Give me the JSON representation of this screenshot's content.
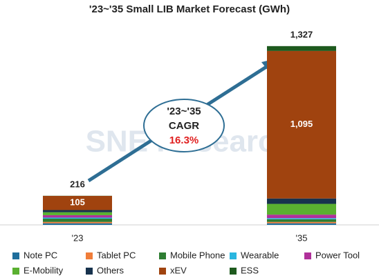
{
  "chart_data": {
    "type": "stacked-bar",
    "title": "'23~'35 Small LIB Market Forecast (GWh)",
    "categories": [
      "'23",
      "'35"
    ],
    "series": [
      {
        "name": "Note PC",
        "color": "#1f6e9c",
        "values": [
          12,
          12
        ]
      },
      {
        "name": "Tablet PC",
        "color": "#f07d3a",
        "values": [
          10,
          10
        ]
      },
      {
        "name": "Mobile Phone",
        "color": "#2e7d32",
        "values": [
          24,
          20
        ]
      },
      {
        "name": "Wearable",
        "color": "#29b6e0",
        "values": [
          8,
          8
        ]
      },
      {
        "name": "Power Tool",
        "color": "#b0309a",
        "values": [
          18,
          26
        ]
      },
      {
        "name": "E-Mobility",
        "color": "#5ab030",
        "values": [
          22,
          80
        ]
      },
      {
        "name": "Others",
        "color": "#17324d",
        "values": [
          16,
          40
        ]
      },
      {
        "name": "xEV",
        "color": "#a0430f",
        "values": [
          105,
          1095
        ],
        "value_labels": [
          "105",
          "1,095"
        ]
      },
      {
        "name": "ESS",
        "color": "#1e5a1e",
        "values": [
          1,
          36
        ]
      }
    ],
    "totals": [
      216,
      1327
    ],
    "total_labels": [
      "216",
      "1,327"
    ],
    "annotation": {
      "period": "'23~'35",
      "label": "CAGR",
      "value": "16.3%"
    },
    "watermark": "SNE Research"
  }
}
